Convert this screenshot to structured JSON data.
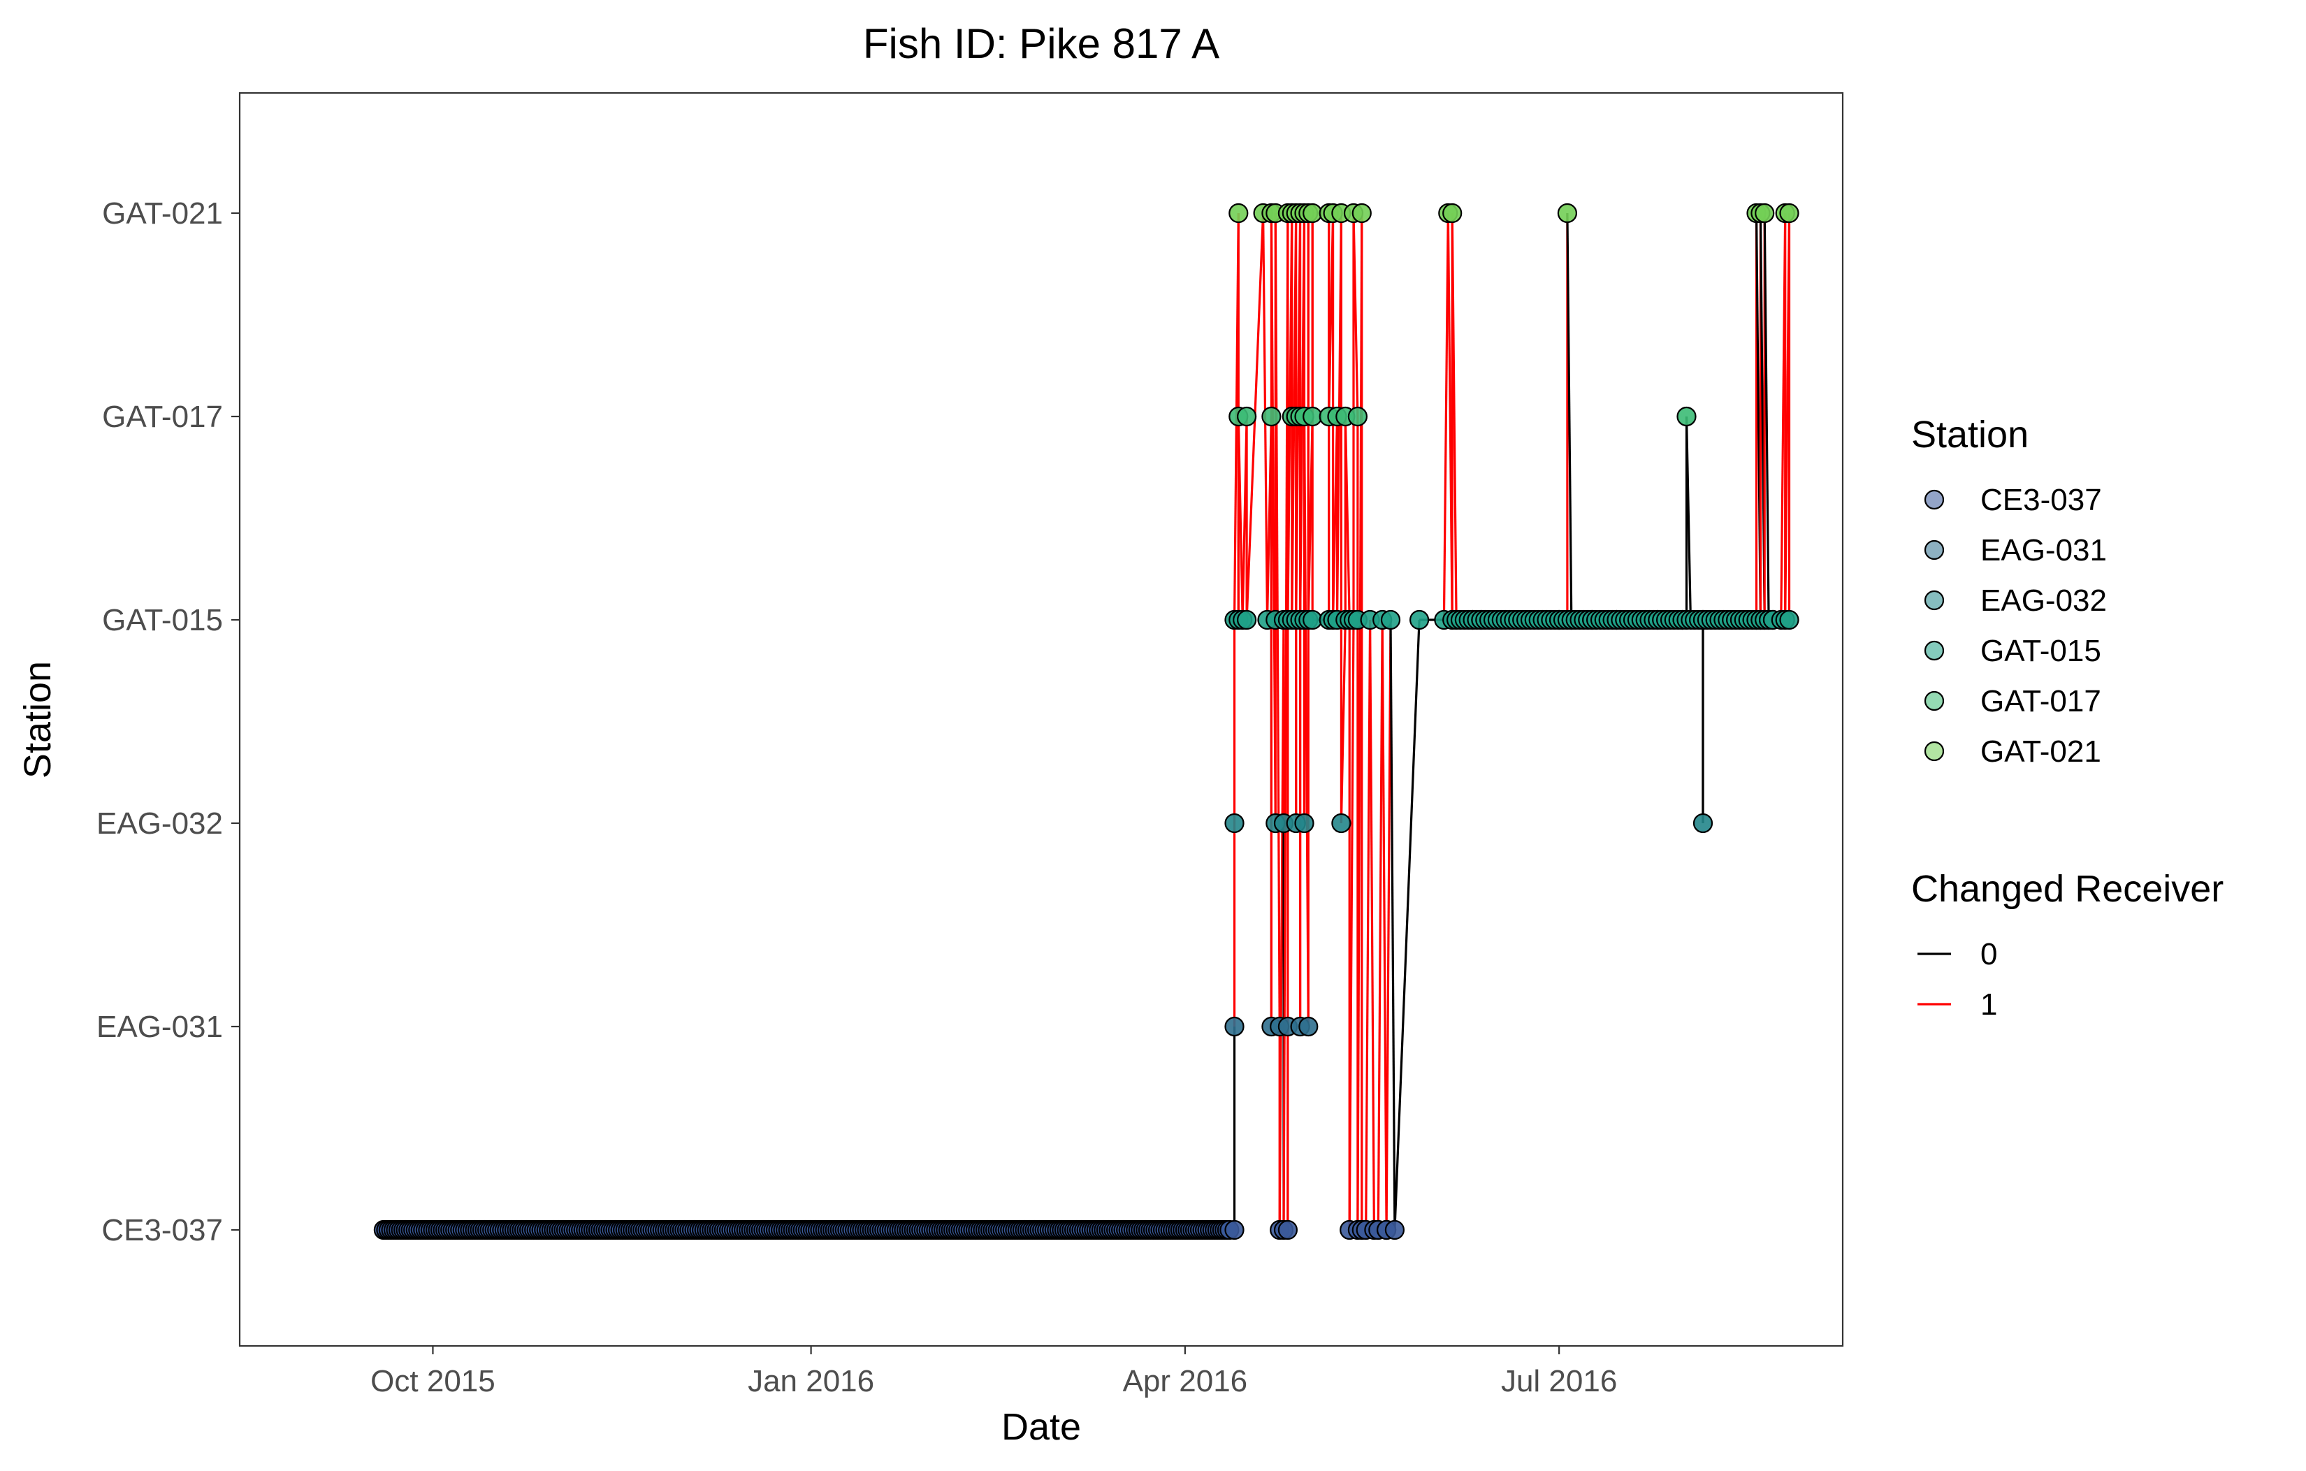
{
  "chart_data": {
    "type": "scatter",
    "title": "Fish ID: Pike 817 A",
    "xlabel": "Date",
    "ylabel": "Station",
    "x_ticks": [
      "Oct 2015",
      "Jan 2016",
      "Apr 2016",
      "Jul 2016"
    ],
    "y_categories": [
      "CE3-037",
      "EAG-031",
      "EAG-032",
      "GAT-015",
      "GAT-017",
      "GAT-021"
    ],
    "station_colors": {
      "CE3-037": "#3b5a9a",
      "EAG-031": "#2f6f8e",
      "EAG-032": "#23868b",
      "GAT-015": "#1fa187",
      "GAT-017": "#3cbb75",
      "GAT-021": "#73cf56"
    },
    "changed_receiver_colors": {
      "0": "#000000",
      "1": "#ff0000"
    },
    "legend": {
      "station_title": "Station",
      "station_entries": [
        "CE3-037",
        "EAG-031",
        "EAG-032",
        "GAT-015",
        "GAT-017",
        "GAT-021"
      ],
      "changed_title": "Changed Receiver",
      "changed_entries": [
        "0",
        "1"
      ],
      "placement": "right"
    },
    "x_range": [
      "2015-08-15",
      "2016-09-08"
    ],
    "grid": false,
    "residency_runs": [
      {
        "station": "CE3-037",
        "start": "2015-09-19",
        "end": "2016-04-12",
        "step_days": 0.6
      },
      {
        "station": "GAT-015",
        "start": "2016-06-07",
        "end": "2016-08-22",
        "step_days": 1.0
      }
    ],
    "detections": [
      {
        "date": "2016-04-13",
        "station": "CE3-037",
        "changed": 0
      },
      {
        "date": "2016-04-13",
        "station": "EAG-031",
        "changed": 0
      },
      {
        "date": "2016-04-13",
        "station": "EAG-032",
        "changed": 1
      },
      {
        "date": "2016-04-13",
        "station": "GAT-015",
        "changed": 1
      },
      {
        "date": "2016-04-14",
        "station": "GAT-021",
        "changed": 1
      },
      {
        "date": "2016-04-14",
        "station": "GAT-015",
        "changed": 1
      },
      {
        "date": "2016-04-14",
        "station": "GAT-017",
        "changed": 1
      },
      {
        "date": "2016-04-15",
        "station": "GAT-015",
        "changed": 1
      },
      {
        "date": "2016-04-16",
        "station": "GAT-017",
        "changed": 1
      },
      {
        "date": "2016-04-16",
        "station": "GAT-015",
        "changed": 1
      },
      {
        "date": "2016-04-20",
        "station": "GAT-021",
        "changed": 1
      },
      {
        "date": "2016-04-21",
        "station": "GAT-015",
        "changed": 1
      },
      {
        "date": "2016-04-22",
        "station": "GAT-017",
        "changed": 1
      },
      {
        "date": "2016-04-22",
        "station": "EAG-031",
        "changed": 0
      },
      {
        "date": "2016-04-22",
        "station": "GAT-021",
        "changed": 1
      },
      {
        "date": "2016-04-23",
        "station": "EAG-032",
        "changed": 1
      },
      {
        "date": "2016-04-23",
        "station": "GAT-015",
        "changed": 1
      },
      {
        "date": "2016-04-23",
        "station": "GAT-021",
        "changed": 1
      },
      {
        "date": "2016-04-24",
        "station": "EAG-031",
        "changed": 1
      },
      {
        "date": "2016-04-24",
        "station": "CE3-037",
        "changed": 1
      },
      {
        "date": "2016-04-25",
        "station": "GAT-015",
        "changed": 1
      },
      {
        "date": "2016-04-25",
        "station": "EAG-032",
        "changed": 1
      },
      {
        "date": "2016-04-25",
        "station": "CE3-037",
        "changed": 0
      },
      {
        "date": "2016-04-26",
        "station": "GAT-021",
        "changed": 1
      },
      {
        "date": "2016-04-26",
        "station": "EAG-031",
        "changed": 1
      },
      {
        "date": "2016-04-26",
        "station": "CE3-037",
        "changed": 1
      },
      {
        "date": "2016-04-26",
        "station": "GAT-015",
        "changed": 1
      },
      {
        "date": "2016-04-27",
        "station": "GAT-021",
        "changed": 1
      },
      {
        "date": "2016-04-27",
        "station": "GAT-017",
        "changed": 1
      },
      {
        "date": "2016-04-27",
        "station": "GAT-015",
        "changed": 1
      },
      {
        "date": "2016-04-28",
        "station": "GAT-021",
        "changed": 1
      },
      {
        "date": "2016-04-28",
        "station": "GAT-017",
        "changed": 1
      },
      {
        "date": "2016-04-28",
        "station": "EAG-032",
        "changed": 1
      },
      {
        "date": "2016-04-28",
        "station": "GAT-015",
        "changed": 1
      },
      {
        "date": "2016-04-29",
        "station": "GAT-021",
        "changed": 1
      },
      {
        "date": "2016-04-29",
        "station": "EAG-031",
        "changed": 1
      },
      {
        "date": "2016-04-29",
        "station": "GAT-017",
        "changed": 1
      },
      {
        "date": "2016-04-29",
        "station": "GAT-015",
        "changed": 1
      },
      {
        "date": "2016-04-30",
        "station": "GAT-021",
        "changed": 1
      },
      {
        "date": "2016-04-30",
        "station": "EAG-032",
        "changed": 1
      },
      {
        "date": "2016-04-30",
        "station": "GAT-015",
        "changed": 1
      },
      {
        "date": "2016-04-30",
        "station": "GAT-017",
        "changed": 1
      },
      {
        "date": "2016-05-01",
        "station": "EAG-031",
        "changed": 1
      },
      {
        "date": "2016-05-01",
        "station": "GAT-021",
        "changed": 1
      },
      {
        "date": "2016-05-01",
        "station": "GAT-015",
        "changed": 1
      },
      {
        "date": "2016-05-02",
        "station": "GAT-017",
        "changed": 1
      },
      {
        "date": "2016-05-02",
        "station": "GAT-021",
        "changed": 1
      },
      {
        "date": "2016-05-02",
        "station": "GAT-015",
        "changed": 1
      },
      {
        "date": "2016-05-06",
        "station": "GAT-015",
        "changed": 0
      },
      {
        "date": "2016-05-06",
        "station": "GAT-021",
        "changed": 1
      },
      {
        "date": "2016-05-06",
        "station": "GAT-017",
        "changed": 1
      },
      {
        "date": "2016-05-07",
        "station": "GAT-021",
        "changed": 1
      },
      {
        "date": "2016-05-07",
        "station": "GAT-015",
        "changed": 1
      },
      {
        "date": "2016-05-08",
        "station": "GAT-017",
        "changed": 1
      },
      {
        "date": "2016-05-08",
        "station": "GAT-015",
        "changed": 1
      },
      {
        "date": "2016-05-09",
        "station": "GAT-021",
        "changed": 1
      },
      {
        "date": "2016-05-09",
        "station": "EAG-032",
        "changed": 1
      },
      {
        "date": "2016-05-10",
        "station": "GAT-015",
        "changed": 1
      },
      {
        "date": "2016-05-10",
        "station": "GAT-017",
        "changed": 1
      },
      {
        "date": "2016-05-11",
        "station": "GAT-015",
        "changed": 1
      },
      {
        "date": "2016-05-11",
        "station": "CE3-037",
        "changed": 1
      },
      {
        "date": "2016-05-12",
        "station": "GAT-015",
        "changed": 1
      },
      {
        "date": "2016-05-12",
        "station": "GAT-021",
        "changed": 1
      },
      {
        "date": "2016-05-13",
        "station": "GAT-017",
        "changed": 1
      },
      {
        "date": "2016-05-13",
        "station": "GAT-015",
        "changed": 1
      },
      {
        "date": "2016-05-13",
        "station": "CE3-037",
        "changed": 1
      },
      {
        "date": "2016-05-14",
        "station": "GAT-021",
        "changed": 1
      },
      {
        "date": "2016-05-14",
        "station": "CE3-037",
        "changed": 1
      },
      {
        "date": "2016-05-15",
        "station": "CE3-037",
        "changed": 0
      },
      {
        "date": "2016-05-16",
        "station": "GAT-015",
        "changed": 1
      },
      {
        "date": "2016-05-17",
        "station": "CE3-037",
        "changed": 1
      },
      {
        "date": "2016-05-18",
        "station": "CE3-037",
        "changed": 0
      },
      {
        "date": "2016-05-19",
        "station": "GAT-015",
        "changed": 1
      },
      {
        "date": "2016-05-20",
        "station": "CE3-037",
        "changed": 1
      },
      {
        "date": "2016-05-20",
        "station": "CE3-037",
        "changed": 0
      },
      {
        "date": "2016-05-21",
        "station": "GAT-015",
        "changed": 1
      },
      {
        "date": "2016-05-22",
        "station": "CE3-037",
        "changed": 0
      },
      {
        "date": "2016-05-28",
        "station": "GAT-015",
        "changed": 0
      },
      {
        "date": "2016-06-03",
        "station": "GAT-015",
        "changed": 0
      },
      {
        "date": "2016-06-04",
        "station": "GAT-021",
        "changed": 1
      },
      {
        "date": "2016-06-05",
        "station": "GAT-015",
        "changed": 1
      },
      {
        "date": "2016-06-05",
        "station": "GAT-021",
        "changed": 1
      },
      {
        "date": "2016-06-06",
        "station": "GAT-015",
        "changed": 1
      },
      {
        "date": "2016-06-10",
        "station": "GAT-015",
        "changed": 0
      },
      {
        "date": "2016-06-12",
        "station": "GAT-015",
        "changed": 0
      },
      {
        "date": "2016-07-01",
        "station": "GAT-015",
        "changed": 0
      },
      {
        "date": "2016-07-03",
        "station": "GAT-021",
        "changed": 1
      },
      {
        "date": "2016-07-04",
        "station": "GAT-015",
        "changed": 1
      },
      {
        "date": "2016-07-09",
        "station": "GAT-015",
        "changed": 0
      },
      {
        "date": "2016-07-15",
        "station": "GAT-015",
        "changed": 0
      },
      {
        "date": "2016-07-25",
        "station": "GAT-015",
        "changed": 0
      },
      {
        "date": "2016-07-31",
        "station": "GAT-015",
        "changed": 0
      },
      {
        "date": "2016-08-01",
        "station": "GAT-017",
        "changed": 0
      },
      {
        "date": "2016-08-05",
        "station": "EAG-032",
        "changed": 0
      },
      {
        "date": "2016-08-05",
        "station": "GAT-015",
        "changed": 0
      },
      {
        "date": "2016-08-18",
        "station": "GAT-015",
        "changed": 0
      },
      {
        "date": "2016-08-18",
        "station": "GAT-021",
        "changed": 1
      },
      {
        "date": "2016-08-19",
        "station": "GAT-015",
        "changed": 1
      },
      {
        "date": "2016-08-19",
        "station": "GAT-021",
        "changed": 1
      },
      {
        "date": "2016-08-20",
        "station": "GAT-015",
        "changed": 1
      },
      {
        "date": "2016-08-20",
        "station": "GAT-021",
        "changed": 1
      },
      {
        "date": "2016-08-21",
        "station": "GAT-015",
        "changed": 1
      },
      {
        "date": "2016-08-22",
        "station": "GAT-015",
        "changed": 0
      },
      {
        "date": "2016-08-24",
        "station": "GAT-015",
        "changed": 0
      },
      {
        "date": "2016-08-25",
        "station": "GAT-021",
        "changed": 1
      },
      {
        "date": "2016-08-25",
        "station": "GAT-015",
        "changed": 1
      },
      {
        "date": "2016-08-26",
        "station": "GAT-021",
        "changed": 1
      },
      {
        "date": "2016-08-26",
        "station": "GAT-015",
        "changed": 1
      }
    ]
  }
}
